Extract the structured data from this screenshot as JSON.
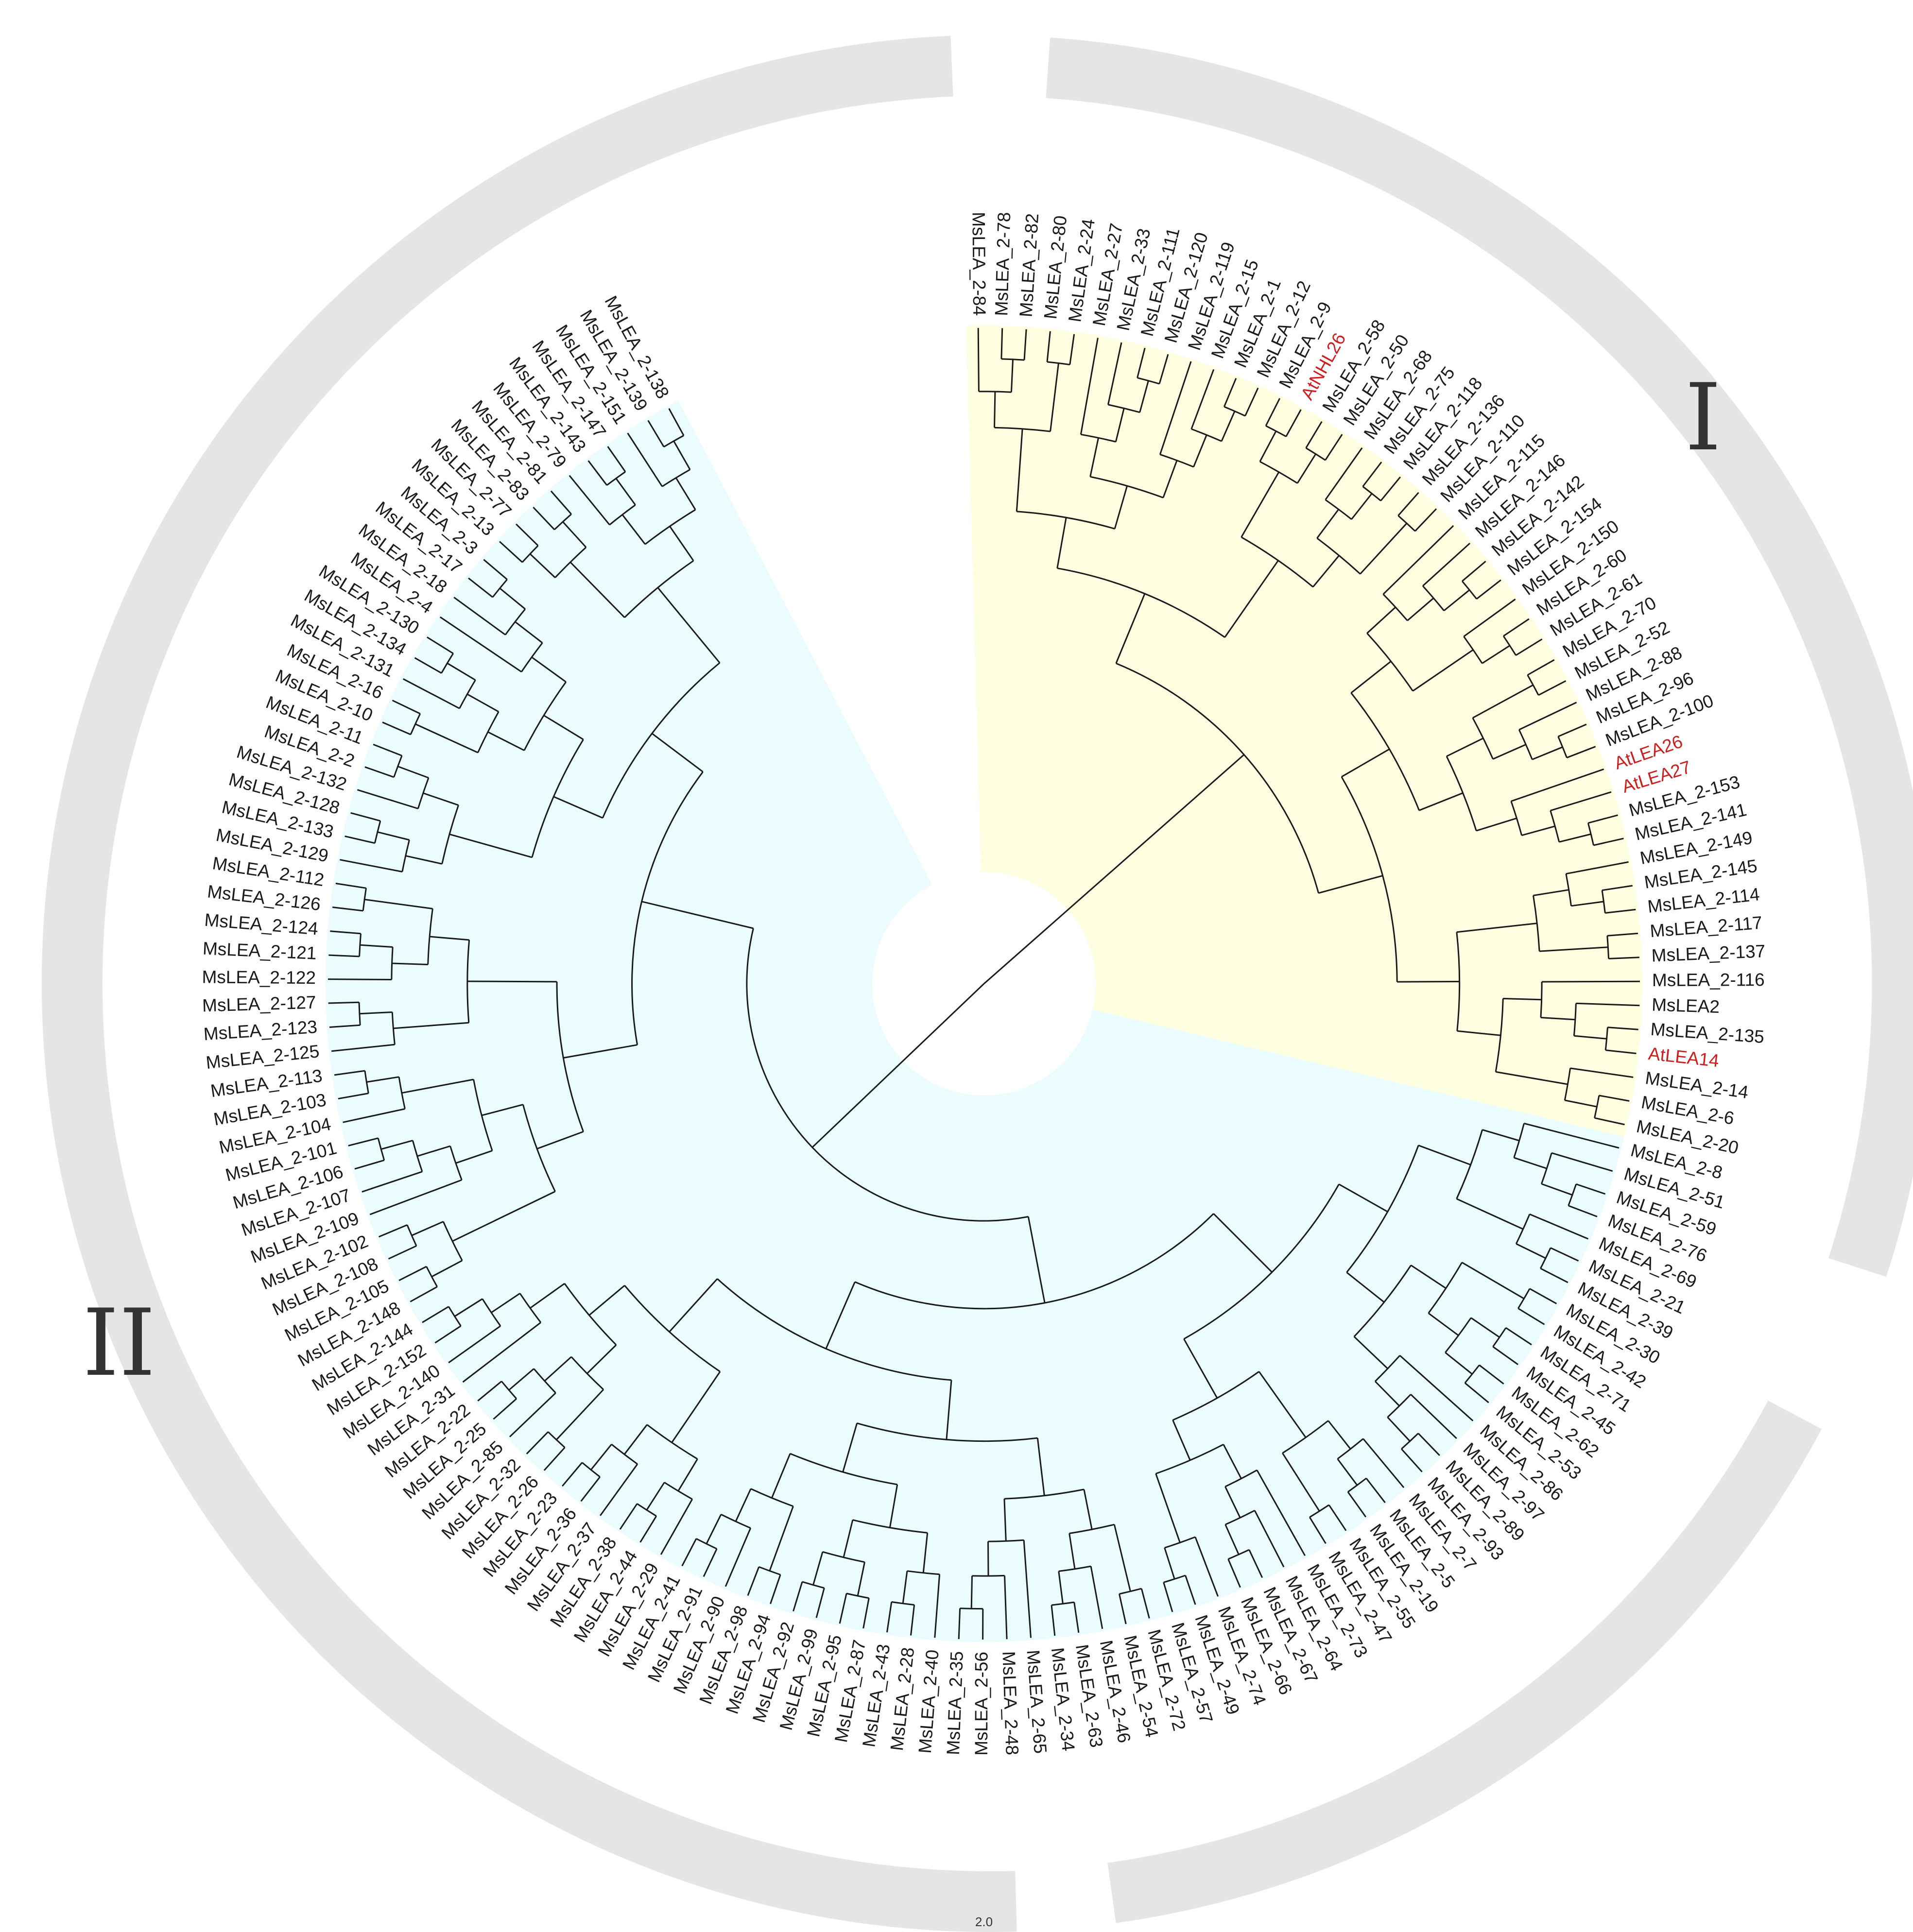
{
  "clade_labels": {
    "one": "I",
    "two": "II"
  },
  "scale_label": "2.0",
  "colors": {
    "clade_one_fill": "#fefee0",
    "clade_two_fill": "#eafcfd",
    "ring": "#e6e5e6",
    "branch": "#1a1a1a",
    "label": "#1a1a1a",
    "highlight_label": "#cc2020"
  },
  "leaves": [
    {
      "name": "MsLEA_2-84",
      "clade": "I"
    },
    {
      "name": "MsLEA_2-78",
      "clade": "I"
    },
    {
      "name": "MsLEA_2-82",
      "clade": "I"
    },
    {
      "name": "MsLEA_2-80",
      "clade": "I"
    },
    {
      "name": "MsLEA_2-24",
      "clade": "I"
    },
    {
      "name": "MsLEA_2-27",
      "clade": "I"
    },
    {
      "name": "MsLEA_2-33",
      "clade": "I"
    },
    {
      "name": "MsLEA_2-111",
      "clade": "I"
    },
    {
      "name": "MsLEA_2-120",
      "clade": "I"
    },
    {
      "name": "MsLEA_2-119",
      "clade": "I"
    },
    {
      "name": "MsLEA_2-15",
      "clade": "I"
    },
    {
      "name": "MsLEA_2-1",
      "clade": "I"
    },
    {
      "name": "MsLEA_2-12",
      "clade": "I"
    },
    {
      "name": "MsLEA_2-9",
      "clade": "I"
    },
    {
      "name": "AtNHL26",
      "clade": "I",
      "highlight": true
    },
    {
      "name": "MsLEA_2-58",
      "clade": "I"
    },
    {
      "name": "MsLEA_2-50",
      "clade": "I"
    },
    {
      "name": "MsLEA_2-68",
      "clade": "I"
    },
    {
      "name": "MsLEA_2-75",
      "clade": "I"
    },
    {
      "name": "MsLEA_2-118",
      "clade": "I"
    },
    {
      "name": "MsLEA_2-136",
      "clade": "I"
    },
    {
      "name": "MsLEA_2-110",
      "clade": "I"
    },
    {
      "name": "MsLEA_2-115",
      "clade": "I"
    },
    {
      "name": "MsLEA_2-146",
      "clade": "I"
    },
    {
      "name": "MsLEA_2-142",
      "clade": "I"
    },
    {
      "name": "MsLEA_2-154",
      "clade": "I"
    },
    {
      "name": "MsLEA_2-150",
      "clade": "I"
    },
    {
      "name": "MsLEA_2-60",
      "clade": "I"
    },
    {
      "name": "MsLEA_2-61",
      "clade": "I"
    },
    {
      "name": "MsLEA_2-70",
      "clade": "I"
    },
    {
      "name": "MsLEA_2-52",
      "clade": "I"
    },
    {
      "name": "MsLEA_2-88",
      "clade": "I"
    },
    {
      "name": "MsLEA_2-96",
      "clade": "I"
    },
    {
      "name": "MsLEA_2-100",
      "clade": "I"
    },
    {
      "name": "AtLEA26",
      "clade": "I",
      "highlight": true
    },
    {
      "name": "AtLEA27",
      "clade": "I",
      "highlight": true
    },
    {
      "name": "MsLEA_2-153",
      "clade": "I"
    },
    {
      "name": "MsLEA_2-141",
      "clade": "I"
    },
    {
      "name": "MsLEA_2-149",
      "clade": "I"
    },
    {
      "name": "MsLEA_2-145",
      "clade": "I"
    },
    {
      "name": "MsLEA_2-114",
      "clade": "I"
    },
    {
      "name": "MsLEA_2-117",
      "clade": "I"
    },
    {
      "name": "MsLEA_2-137",
      "clade": "I"
    },
    {
      "name": "MsLEA_2-116",
      "clade": "I"
    },
    {
      "name": "MsLEA2",
      "clade": "I"
    },
    {
      "name": "MsLEA_2-135",
      "clade": "I"
    },
    {
      "name": "AtLEA14",
      "clade": "I",
      "highlight": true
    },
    {
      "name": "MsLEA_2-14",
      "clade": "I"
    },
    {
      "name": "MsLEA_2-6",
      "clade": "I"
    },
    {
      "name": "MsLEA_2-20",
      "clade": "I"
    },
    {
      "name": "MsLEA_2-8",
      "clade": "II"
    },
    {
      "name": "MsLEA_2-51",
      "clade": "II"
    },
    {
      "name": "MsLEA_2-59",
      "clade": "II"
    },
    {
      "name": "MsLEA_2-76",
      "clade": "II"
    },
    {
      "name": "MsLEA_2-69",
      "clade": "II"
    },
    {
      "name": "MsLEA_2-21",
      "clade": "II"
    },
    {
      "name": "MsLEA_2-39",
      "clade": "II"
    },
    {
      "name": "MsLEA_2-30",
      "clade": "II"
    },
    {
      "name": "MsLEA_2-42",
      "clade": "II"
    },
    {
      "name": "MsLEA_2-71",
      "clade": "II"
    },
    {
      "name": "MsLEA_2-45",
      "clade": "II"
    },
    {
      "name": "MsLEA_2-62",
      "clade": "II"
    },
    {
      "name": "MsLEA_2-53",
      "clade": "II"
    },
    {
      "name": "MsLEA_2-86",
      "clade": "II"
    },
    {
      "name": "MsLEA_2-97",
      "clade": "II"
    },
    {
      "name": "MsLEA_2-89",
      "clade": "II"
    },
    {
      "name": "MsLEA_2-93",
      "clade": "II"
    },
    {
      "name": "MsLEA_2-7",
      "clade": "II"
    },
    {
      "name": "MsLEA_2-5",
      "clade": "II"
    },
    {
      "name": "MsLEA_2-19",
      "clade": "II"
    },
    {
      "name": "MsLEA_2-55",
      "clade": "II"
    },
    {
      "name": "MsLEA_2-47",
      "clade": "II"
    },
    {
      "name": "MsLEA_2-73",
      "clade": "II"
    },
    {
      "name": "MsLEA_2-64",
      "clade": "II"
    },
    {
      "name": "MsLEA_2-67",
      "clade": "II"
    },
    {
      "name": "MsLEA_2-66",
      "clade": "II"
    },
    {
      "name": "MsLEA_2-74",
      "clade": "II"
    },
    {
      "name": "MsLEA_2-49",
      "clade": "II"
    },
    {
      "name": "MsLEA_2-57",
      "clade": "II"
    },
    {
      "name": "MsLEA_2-72",
      "clade": "II"
    },
    {
      "name": "MsLEA_2-54",
      "clade": "II"
    },
    {
      "name": "MsLEA_2-46",
      "clade": "II"
    },
    {
      "name": "MsLEA_2-63",
      "clade": "II"
    },
    {
      "name": "MsLEA_2-34",
      "clade": "II"
    },
    {
      "name": "MsLEA_2-65",
      "clade": "II"
    },
    {
      "name": "MsLEA_2-48",
      "clade": "II"
    },
    {
      "name": "MsLEA_2-56",
      "clade": "II"
    },
    {
      "name": "MsLEA_2-35",
      "clade": "II"
    },
    {
      "name": "MsLEA_2-40",
      "clade": "II"
    },
    {
      "name": "MsLEA_2-28",
      "clade": "II"
    },
    {
      "name": "MsLEA_2-43",
      "clade": "II"
    },
    {
      "name": "MsLEA_2-87",
      "clade": "II"
    },
    {
      "name": "MsLEA_2-95",
      "clade": "II"
    },
    {
      "name": "MsLEA_2-99",
      "clade": "II"
    },
    {
      "name": "MsLEA_2-92",
      "clade": "II"
    },
    {
      "name": "MsLEA_2-94",
      "clade": "II"
    },
    {
      "name": "MsLEA_2-98",
      "clade": "II"
    },
    {
      "name": "MsLEA_2-90",
      "clade": "II"
    },
    {
      "name": "MsLEA_2-91",
      "clade": "II"
    },
    {
      "name": "MsLEA_2-41",
      "clade": "II"
    },
    {
      "name": "MsLEA_2-29",
      "clade": "II"
    },
    {
      "name": "MsLEA_2-44",
      "clade": "II"
    },
    {
      "name": "MsLEA_2-38",
      "clade": "II"
    },
    {
      "name": "MsLEA_2-37",
      "clade": "II"
    },
    {
      "name": "MsLEA_2-36",
      "clade": "II"
    },
    {
      "name": "MsLEA_2-23",
      "clade": "II"
    },
    {
      "name": "MsLEA_2-26",
      "clade": "II"
    },
    {
      "name": "MsLEA_2-32",
      "clade": "II"
    },
    {
      "name": "MsLEA_2-85",
      "clade": "II"
    },
    {
      "name": "MsLEA_2-25",
      "clade": "II"
    },
    {
      "name": "MsLEA_2-22",
      "clade": "II"
    },
    {
      "name": "MsLEA_2-31",
      "clade": "II"
    },
    {
      "name": "MsLEA_2-140",
      "clade": "II"
    },
    {
      "name": "MsLEA_2-152",
      "clade": "II"
    },
    {
      "name": "MsLEA_2-144",
      "clade": "II"
    },
    {
      "name": "MsLEA_2-148",
      "clade": "II"
    },
    {
      "name": "MsLEA_2-105",
      "clade": "II"
    },
    {
      "name": "MsLEA_2-108",
      "clade": "II"
    },
    {
      "name": "MsLEA_2-102",
      "clade": "II"
    },
    {
      "name": "MsLEA_2-109",
      "clade": "II"
    },
    {
      "name": "MsLEA_2-107",
      "clade": "II"
    },
    {
      "name": "MsLEA_2-106",
      "clade": "II"
    },
    {
      "name": "MsLEA_2-101",
      "clade": "II"
    },
    {
      "name": "MsLEA_2-104",
      "clade": "II"
    },
    {
      "name": "MsLEA_2-103",
      "clade": "II"
    },
    {
      "name": "MsLEA_2-113",
      "clade": "II"
    },
    {
      "name": "MsLEA_2-125",
      "clade": "II"
    },
    {
      "name": "MsLEA_2-123",
      "clade": "II"
    },
    {
      "name": "MsLEA_2-127",
      "clade": "II"
    },
    {
      "name": "MsLEA_2-122",
      "clade": "II"
    },
    {
      "name": "MsLEA_2-121",
      "clade": "II"
    },
    {
      "name": "MsLEA_2-124",
      "clade": "II"
    },
    {
      "name": "MsLEA_2-126",
      "clade": "II"
    },
    {
      "name": "MsLEA_2-112",
      "clade": "II"
    },
    {
      "name": "MsLEA_2-129",
      "clade": "II"
    },
    {
      "name": "MsLEA_2-133",
      "clade": "II"
    },
    {
      "name": "MsLEA_2-128",
      "clade": "II"
    },
    {
      "name": "MsLEA_2-132",
      "clade": "II"
    },
    {
      "name": "MsLEA_2-2",
      "clade": "II"
    },
    {
      "name": "MsLEA_2-11",
      "clade": "II"
    },
    {
      "name": "MsLEA_2-10",
      "clade": "II"
    },
    {
      "name": "MsLEA_2-16",
      "clade": "II"
    },
    {
      "name": "MsLEA_2-131",
      "clade": "II"
    },
    {
      "name": "MsLEA_2-134",
      "clade": "II"
    },
    {
      "name": "MsLEA_2-130",
      "clade": "II"
    },
    {
      "name": "MsLEA_2-4",
      "clade": "II"
    },
    {
      "name": "MsLEA_2-18",
      "clade": "II"
    },
    {
      "name": "MsLEA_2-17",
      "clade": "II"
    },
    {
      "name": "MsLEA_2-3",
      "clade": "II"
    },
    {
      "name": "MsLEA_2-13",
      "clade": "II"
    },
    {
      "name": "MsLEA_2-77",
      "clade": "II"
    },
    {
      "name": "MsLEA_2-83",
      "clade": "II"
    },
    {
      "name": "MsLEA_2-81",
      "clade": "II"
    },
    {
      "name": "MsLEA_2-79",
      "clade": "II"
    },
    {
      "name": "MsLEA_2-143",
      "clade": "II"
    },
    {
      "name": "MsLEA_2-147",
      "clade": "II"
    },
    {
      "name": "MsLEA_2-151",
      "clade": "II"
    },
    {
      "name": "MsLEA_2-139",
      "clade": "II"
    },
    {
      "name": "MsLEA_2-138",
      "clade": "II"
    }
  ]
}
